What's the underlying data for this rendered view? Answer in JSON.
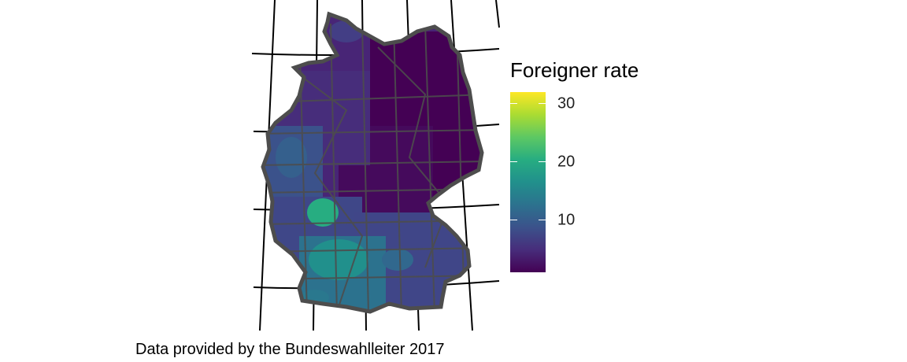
{
  "legend": {
    "title": "Foreigner rate",
    "ticks": [
      {
        "value": 10,
        "label": "10"
      },
      {
        "value": 20,
        "label": "20"
      },
      {
        "value": 30,
        "label": "30"
      }
    ],
    "range": [
      1,
      32
    ],
    "palette": "viridis",
    "colors": [
      "#440154",
      "#472d7b",
      "#3b528b",
      "#2c728e",
      "#21908c",
      "#27ad81",
      "#5dc863",
      "#aadc32",
      "#fde725"
    ]
  },
  "caption": "Data provided by the Bundeswahlleiter 2017",
  "map": {
    "region": "Germany",
    "boundary_color": "#4d4d4d",
    "graticule_color": "#000000"
  }
}
